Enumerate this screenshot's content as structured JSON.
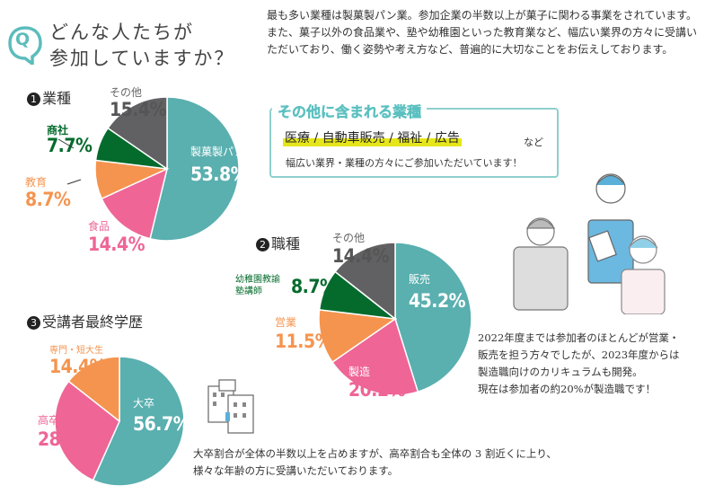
{
  "header": {
    "q_letter": "Q",
    "title_line1": "どんな人たちが",
    "title_line2": "参加していますか？"
  },
  "intro_text": "最も多い業種は製菓製パン業。参加企業の半数以上が菓子に関わる事業をされています。また、菓子以外の食品業や、塾や幼稚園といった教育業など、幅広い業界の方々に受講いただいており、働く姿勢や考え方など、普遍的に大切なことをお伝えしております。",
  "other_box": {
    "title": "その他に含まれる業種",
    "items": "医療 / 自動車販売 / 福祉 / 広告",
    "suffix": "など",
    "line": "幅広い業界・業種の方々にご参加いただいています！"
  },
  "note_job": [
    "2022年度までは参加者のほとんどが営業・",
    "販売を担う方々でしたが、2023年度からは",
    "製造職向けのカリキュラムも開発。",
    "現在は参加者の約20%が製造職です！"
  ],
  "note_edu": [
    "大卒割合が全体の半数以上を占めますが、高卒割合も全体の 3 割近くに上り、",
    "様々な年齢の方に受講いただいております。"
  ],
  "colors": {
    "teal": "#5aafaf",
    "pink": "#ee6596",
    "orange": "#f5944f",
    "green": "#046b2c",
    "gray": "#616163"
  },
  "chart_data": [
    {
      "type": "pie",
      "num": "1",
      "title": "業種",
      "slices": [
        {
          "label": "製菓製パン",
          "value": 53.8,
          "display": "53.8%",
          "color": "#5aafaf"
        },
        {
          "label": "食品",
          "value": 14.4,
          "display": "14.4%",
          "color": "#ee6596"
        },
        {
          "label": "教育",
          "value": 8.7,
          "display": "8.7%",
          "color": "#f5944f"
        },
        {
          "label": "商社",
          "value": 7.7,
          "display": "7.7%",
          "color": "#046b2c"
        },
        {
          "label": "その他",
          "value": 15.4,
          "display": "15.4%",
          "color": "#616163"
        }
      ]
    },
    {
      "type": "pie",
      "num": "2",
      "title": "職種",
      "slices": [
        {
          "label": "販売",
          "value": 45.2,
          "display": "45.2%",
          "color": "#5aafaf"
        },
        {
          "label": "製造",
          "value": 20.2,
          "display": "20.2%",
          "color": "#ee6596"
        },
        {
          "label": "営業",
          "value": 11.5,
          "display": "11.5%",
          "color": "#f5944f"
        },
        {
          "label": "幼稚園教諭 塾講師",
          "label_line1": "幼稚園教諭",
          "label_line2": "塾講師",
          "value": 8.7,
          "display": "8.7%",
          "color": "#046b2c"
        },
        {
          "label": "その他",
          "value": 14.4,
          "display": "14.4%",
          "color": "#616163"
        }
      ]
    },
    {
      "type": "pie",
      "num": "3",
      "title": "受講者最終学歴",
      "slices": [
        {
          "label": "大卒",
          "value": 56.7,
          "display": "56.7%",
          "color": "#5aafaf"
        },
        {
          "label": "高卒",
          "value": 28.9,
          "display": "28.9%",
          "color": "#ee6596"
        },
        {
          "label": "専門・短大生",
          "value": 14.4,
          "display": "14.4%",
          "color": "#f5944f"
        }
      ]
    }
  ]
}
